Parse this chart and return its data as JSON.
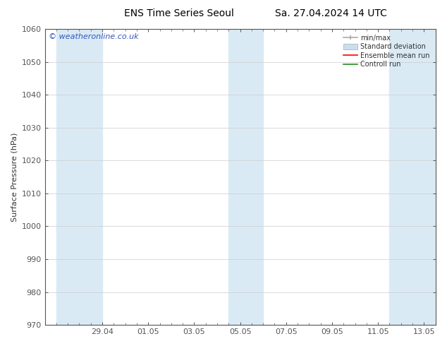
{
  "title_left": "ENS Time Series Seoul",
  "title_right": "Sa. 27.04.2024 14 UTC",
  "ylabel": "Surface Pressure (hPa)",
  "ylim": [
    970,
    1060
  ],
  "yticks": [
    970,
    980,
    990,
    1000,
    1010,
    1020,
    1030,
    1040,
    1050,
    1060
  ],
  "xtick_labels": [
    "29.04",
    "01.05",
    "03.05",
    "05.05",
    "07.05",
    "09.05",
    "11.05",
    "13.05"
  ],
  "bg_color": "#ffffff",
  "plot_bg_color": "#ffffff",
  "shaded_bands": [
    {
      "x_start": 0.0,
      "x_end": 2.0
    },
    {
      "x_start": 7.5,
      "x_end": 9.0
    },
    {
      "x_start": 14.5,
      "x_end": 16.5
    }
  ],
  "shade_color": "#daeaf5",
  "watermark_text": "© weatheronline.co.uk",
  "watermark_color": "#3355bb",
  "xlim": [
    -0.5,
    16.5
  ],
  "xtick_positions": [
    2,
    4,
    6,
    8,
    10,
    12,
    14,
    16
  ],
  "legend_minmax_color": "#aaaaaa",
  "legend_std_color": "#c8dff0",
  "legend_ens_color": "#ff0000",
  "legend_ctrl_color": "#228b22",
  "spine_color": "#555555",
  "grid_color": "#cccccc",
  "tick_label_fontsize": 8,
  "ylabel_fontsize": 8,
  "title_fontsize": 10,
  "watermark_fontsize": 8
}
